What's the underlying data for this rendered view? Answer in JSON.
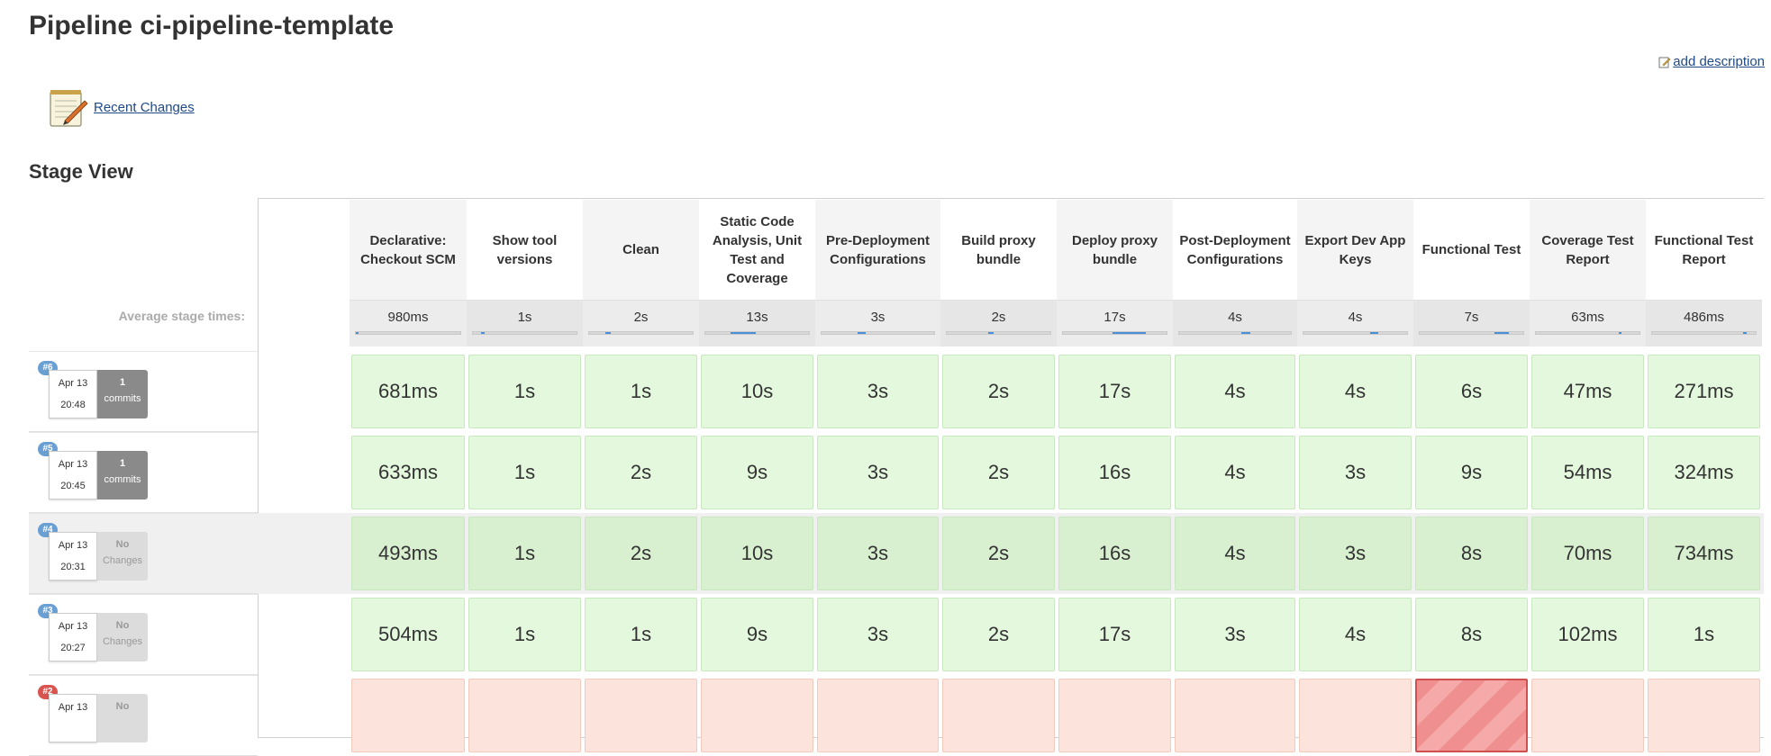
{
  "page_title": "Pipeline ci-pipeline-template",
  "add_description": "add description",
  "recent_changes": "Recent Changes",
  "stage_view_title": "Stage View",
  "average_label": "Average stage times:",
  "stages": [
    {
      "name": "Declarative: Checkout SCM",
      "avg": "980ms",
      "avg_fraction": 0.03
    },
    {
      "name": "Show tool versions",
      "avg": "1s",
      "avg_fraction": 0.03
    },
    {
      "name": "Clean",
      "avg": "2s",
      "avg_fraction": 0.05
    },
    {
      "name": "Static Code Analysis, Unit Test and Coverage",
      "avg": "13s",
      "avg_fraction": 0.25
    },
    {
      "name": "Pre-Deployment Configurations",
      "avg": "3s",
      "avg_fraction": 0.07
    },
    {
      "name": "Build proxy bundle",
      "avg": "2s",
      "avg_fraction": 0.05
    },
    {
      "name": "Deploy proxy bundle",
      "avg": "17s",
      "avg_fraction": 0.32
    },
    {
      "name": "Post-Deployment Configurations",
      "avg": "4s",
      "avg_fraction": 0.08
    },
    {
      "name": "Export Dev App Keys",
      "avg": "4s",
      "avg_fraction": 0.08
    },
    {
      "name": "Functional Test",
      "avg": "7s",
      "avg_fraction": 0.14
    },
    {
      "name": "Coverage Test Report",
      "avg": "63ms",
      "avg_fraction": 0.01
    },
    {
      "name": "Functional Test Report",
      "avg": "486ms",
      "avg_fraction": 0.02
    }
  ],
  "builds": [
    {
      "number": "#6",
      "date": "Apr 13",
      "time": "20:48",
      "changes_count": "1",
      "changes_label": "commits",
      "status": "success",
      "durations": [
        "681ms",
        "1s",
        "1s",
        "10s",
        "3s",
        "2s",
        "17s",
        "4s",
        "4s",
        "6s",
        "47ms",
        "271ms"
      ]
    },
    {
      "number": "#5",
      "date": "Apr 13",
      "time": "20:45",
      "changes_count": "1",
      "changes_label": "commits",
      "status": "success",
      "durations": [
        "633ms",
        "1s",
        "2s",
        "9s",
        "3s",
        "2s",
        "16s",
        "4s",
        "3s",
        "9s",
        "54ms",
        "324ms"
      ]
    },
    {
      "number": "#4",
      "date": "Apr 13",
      "time": "20:31",
      "changes_count": "No",
      "changes_label": "Changes",
      "status": "success",
      "durations": [
        "493ms",
        "1s",
        "2s",
        "10s",
        "3s",
        "2s",
        "16s",
        "4s",
        "3s",
        "8s",
        "70ms",
        "734ms"
      ]
    },
    {
      "number": "#3",
      "date": "Apr 13",
      "time": "20:27",
      "changes_count": "No",
      "changes_label": "Changes",
      "status": "success",
      "durations": [
        "504ms",
        "1s",
        "1s",
        "9s",
        "3s",
        "2s",
        "17s",
        "3s",
        "4s",
        "8s",
        "102ms",
        "1s"
      ]
    },
    {
      "number": "#2",
      "date": "Apr 13",
      "time": "",
      "changes_count": "No",
      "changes_label": "",
      "status": "failed",
      "durations": [
        "",
        "",
        "",
        "",
        "",
        "",
        "",
        "",
        "",
        "",
        "",
        ""
      ],
      "failed_stage_index": 9
    }
  ],
  "colors": {
    "success": "#e4f8de",
    "failed": "#fce4dc",
    "bar": "#4a90d9",
    "link": "#204a87"
  }
}
